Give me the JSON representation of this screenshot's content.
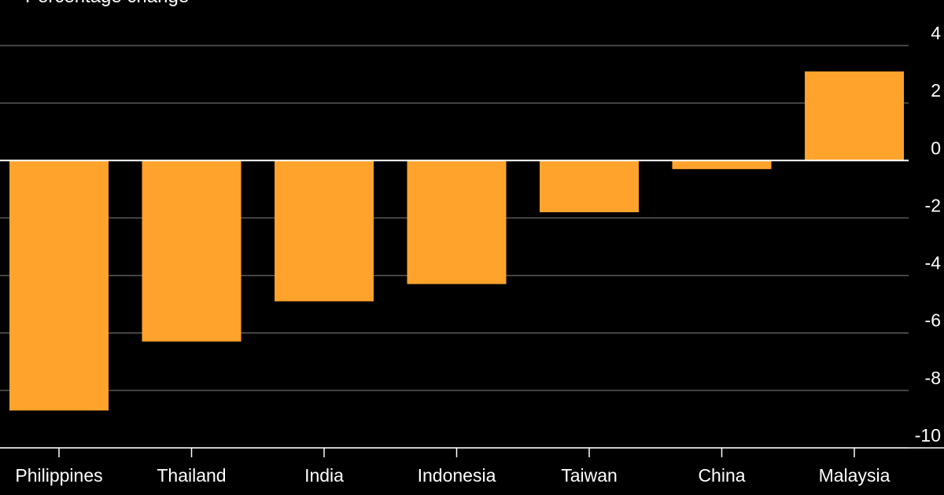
{
  "chart_data": {
    "type": "bar",
    "legend": {
      "label": "Percentage change",
      "placement": "top-left"
    },
    "categories": [
      "Philippines",
      "Thailand",
      "India",
      "Indonesia",
      "Taiwan",
      "China",
      "Malaysia"
    ],
    "series": [
      {
        "name": "Percentage change",
        "values": [
          -8.7,
          -6.3,
          -4.9,
          -4.3,
          -1.8,
          -0.3,
          3.1
        ]
      }
    ],
    "ylim": [
      -10,
      4
    ],
    "yticks": [
      4,
      2,
      0,
      -2,
      -4,
      -6,
      -8,
      -10
    ],
    "grid": true,
    "y_axis_side": "right"
  },
  "colors": {
    "background": "#000000",
    "bar": "#ffa32c",
    "grid": "#5a5a5a",
    "zero_line": "#ffffff",
    "text": "#ffffff"
  }
}
